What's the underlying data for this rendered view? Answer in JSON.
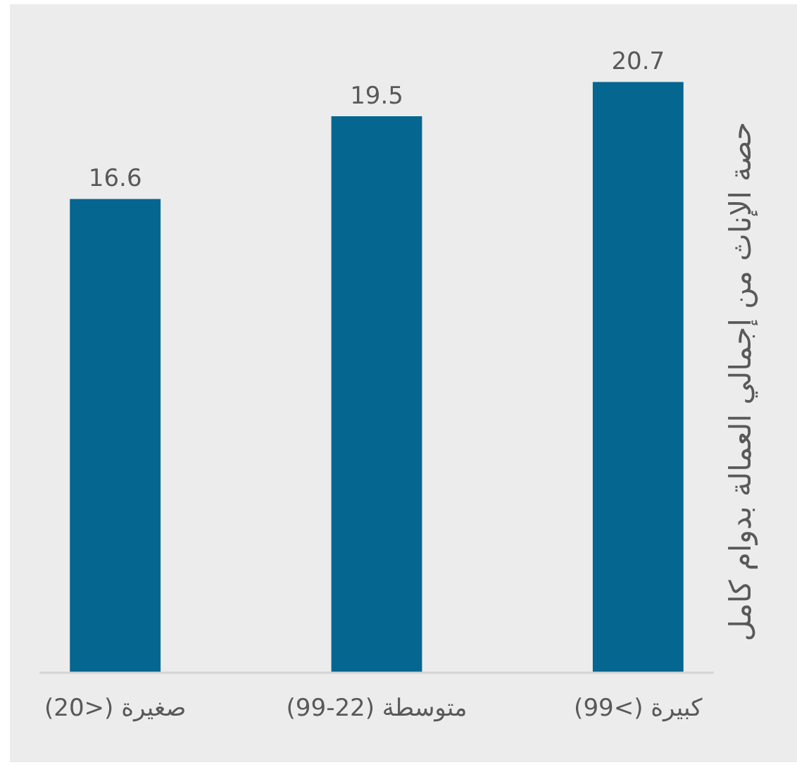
{
  "chart_data": {
    "type": "bar",
    "ylabel": "حصة الإناث من إجمالي العمالة بدوام كامل",
    "categories": [
      "صغيرة (<20)",
      "متوسطة (22-99)",
      "كبيرة (>99)"
    ],
    "values": [
      16.6,
      19.5,
      20.7
    ],
    "color": "#05668f",
    "data_labels": true
  }
}
